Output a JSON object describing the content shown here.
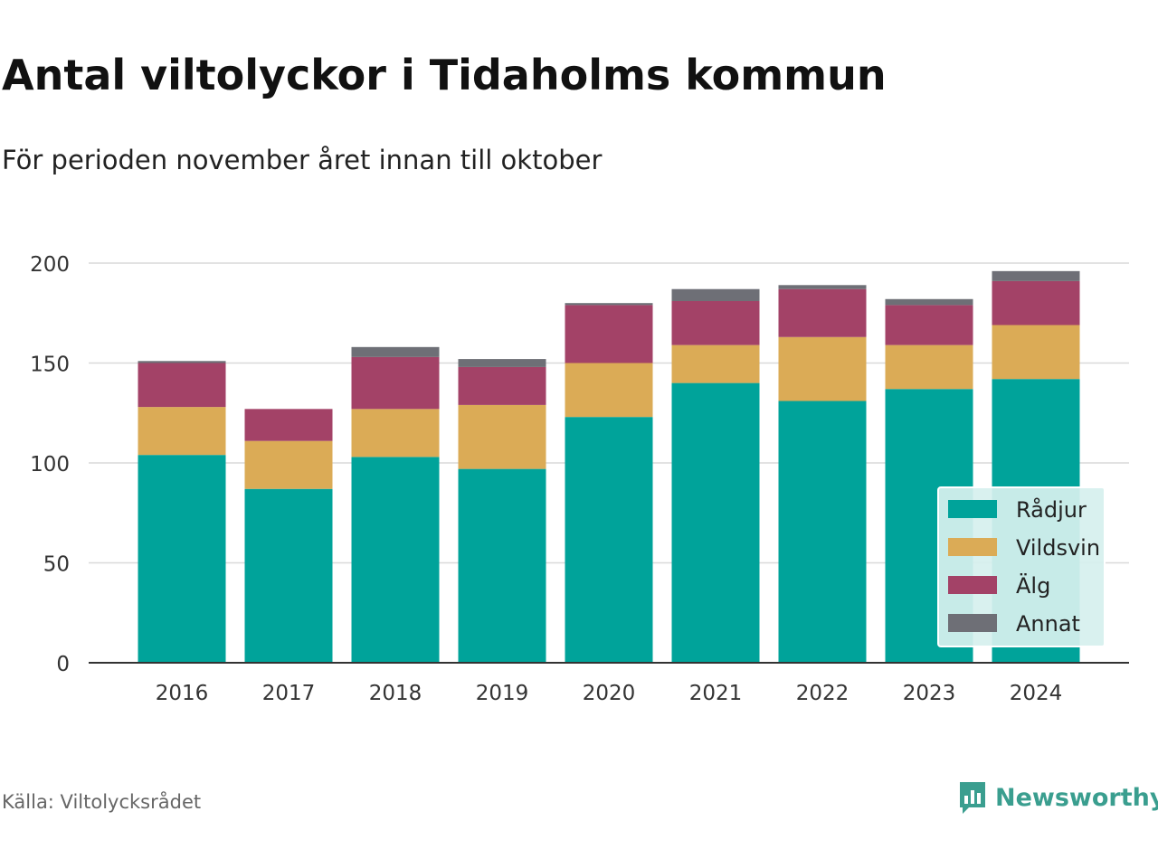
{
  "title": "Antal viltolyckor i Tidaholms kommun",
  "subtitle": "För perioden november året innan till oktober",
  "source": "Källa: Viltolycksrådet",
  "brand": {
    "name": "Newsworthy",
    "icon": "newsworthy-logo-icon",
    "color": "#3a9e8f"
  },
  "chart_data": {
    "type": "bar",
    "stacked": true,
    "categories": [
      "2016",
      "2017",
      "2018",
      "2019",
      "2020",
      "2021",
      "2022",
      "2023",
      "2024"
    ],
    "series": [
      {
        "name": "Rådjur",
        "color": "#00a39a",
        "values": [
          104,
          87,
          103,
          97,
          123,
          140,
          131,
          137,
          142
        ]
      },
      {
        "name": "Vildsvin",
        "color": "#dbab56",
        "values": [
          24,
          24,
          24,
          32,
          27,
          19,
          32,
          22,
          27
        ]
      },
      {
        "name": "Älg",
        "color": "#a34267",
        "values": [
          22,
          16,
          26,
          19,
          29,
          22,
          24,
          20,
          22
        ]
      },
      {
        "name": "Annat",
        "color": "#6e6f76",
        "values": [
          1,
          0,
          5,
          4,
          1,
          6,
          2,
          3,
          5
        ]
      }
    ],
    "yticks": [
      0,
      50,
      100,
      150,
      200
    ],
    "ylim": [
      0,
      210
    ],
    "grid": true,
    "legend_position": "bottom-right"
  }
}
